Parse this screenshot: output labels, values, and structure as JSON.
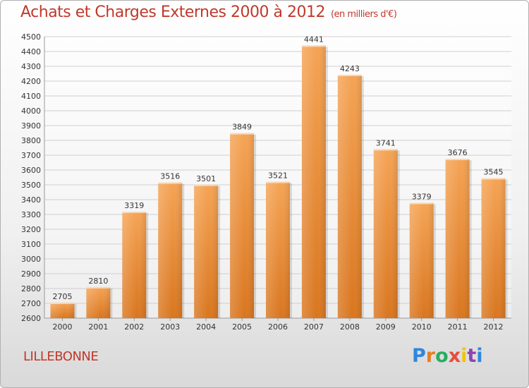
{
  "header": {
    "title": "Achats et Charges Externes 2000 à 2012",
    "subtitle": "(en milliers d'€)"
  },
  "footer": {
    "town": "LILLEBONNE",
    "brand": "Proxiti",
    "brand_colors": [
      "#2e86de",
      "#e67e22",
      "#27ae60",
      "#e74c3c",
      "#f1c40f",
      "#8e44ad",
      "#2e86de"
    ]
  },
  "chart_data": {
    "type": "bar",
    "title": "Achats et Charges Externes 2000 à 2012",
    "subtitle": "(en milliers d'€)",
    "categories": [
      "2000",
      "2001",
      "2002",
      "2003",
      "2004",
      "2005",
      "2006",
      "2007",
      "2008",
      "2009",
      "2010",
      "2011",
      "2012"
    ],
    "values": [
      2705,
      2810,
      3319,
      3516,
      3501,
      3849,
      3521,
      4441,
      4243,
      3741,
      3379,
      3676,
      3545
    ],
    "ylim": [
      2600,
      4500
    ],
    "ytick_step": 100,
    "grid": true,
    "bar_color_top": "#f5a455",
    "bar_color_bottom": "#d9761f",
    "xlabel": "",
    "ylabel": ""
  }
}
